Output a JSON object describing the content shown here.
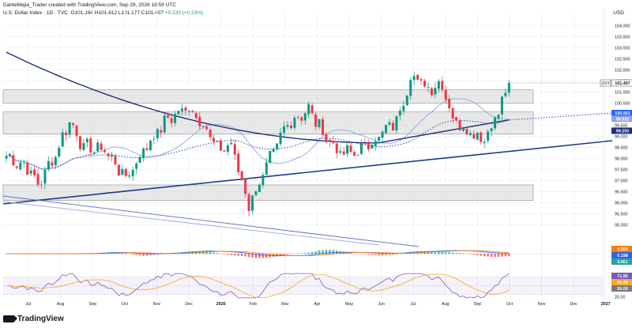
{
  "header": {
    "credit": "DanteMejia_Trader created with TradingView.com, Sep 29, 2026 19:59 UTC",
    "symbol": "U.S. Dollar Index · 1D · TVC",
    "ohlc": "O101.194 H101.612 L101.177 C101.407",
    "change": "+0.233 (+0.23%)",
    "currency": "USD"
  },
  "brand": {
    "name": "TradingView"
  },
  "colors": {
    "up": "#089981",
    "down": "#f23645",
    "ma_fast": "#8aa6e6",
    "ma_dot": "#2a41b8",
    "ma_slow": "#1f2f7a",
    "trendline": "#1f3a8a",
    "zone": "#d6d6d6",
    "rsi": "#7e57c2"
  },
  "chart_data": [
    {
      "type": "candlestick",
      "title": "U.S. Dollar Index · 1D · TVC",
      "x_axis_labels": [
        "Jul",
        "Aug",
        "Sep",
        "Oct",
        "Nov",
        "Dec",
        "2026",
        "Feb",
        "Mar",
        "Apr",
        "May",
        "Jun",
        "Jul",
        "Aug",
        "Sep",
        "Oct",
        "Nov",
        "Dec",
        "2027"
      ],
      "y_ticks": [
        "104.000",
        "103.500",
        "103.000",
        "102.500",
        "102.000",
        "101.500",
        "101.000",
        "100.500",
        "100.000",
        "99.500",
        "99.000",
        "98.500",
        "98.000",
        "97.500",
        "97.000",
        "96.500",
        "96.000",
        "95.500",
        "95.000"
      ],
      "ylim": [
        94.8,
        104.3
      ],
      "price_waypoints": [
        {
          "x": 0,
          "y": 98.1
        },
        {
          "x": 6,
          "y": 97.6
        },
        {
          "x": 9,
          "y": 96.8
        },
        {
          "x": 14,
          "y": 98.2
        },
        {
          "x": 18,
          "y": 99.7
        },
        {
          "x": 22,
          "y": 98.5
        },
        {
          "x": 28,
          "y": 98.4
        },
        {
          "x": 34,
          "y": 97.1
        },
        {
          "x": 40,
          "y": 98.6
        },
        {
          "x": 46,
          "y": 99.8
        },
        {
          "x": 52,
          "y": 100.3
        },
        {
          "x": 56,
          "y": 99.6
        },
        {
          "x": 60,
          "y": 98.4
        },
        {
          "x": 64,
          "y": 98.6
        },
        {
          "x": 69,
          "y": 95.9
        },
        {
          "x": 74,
          "y": 97.6
        },
        {
          "x": 80,
          "y": 99.6
        },
        {
          "x": 86,
          "y": 100.2
        },
        {
          "x": 90,
          "y": 99.2
        },
        {
          "x": 95,
          "y": 98.2
        },
        {
          "x": 100,
          "y": 98.3
        },
        {
          "x": 106,
          "y": 99.0
        },
        {
          "x": 111,
          "y": 99.7
        },
        {
          "x": 115,
          "y": 101.7
        },
        {
          "x": 120,
          "y": 101.2
        },
        {
          "x": 124,
          "y": 101.4
        },
        {
          "x": 127,
          "y": 99.8
        },
        {
          "x": 131,
          "y": 99.3
        },
        {
          "x": 136,
          "y": 98.9
        },
        {
          "x": 140,
          "y": 100.1
        },
        {
          "x": 143,
          "y": 101.41
        }
      ],
      "price_range": [
        95.7,
        101.9
      ],
      "zones": [
        [
          100.5,
          101.1
        ],
        [
          99.1,
          100.1
        ],
        [
          96.1,
          96.8
        ]
      ],
      "last_price": {
        "label": "DXY",
        "value": "101.407"
      },
      "level_labels": [
        {
          "value": "100.051",
          "color": "#2962ff"
        },
        {
          "value": "99.932",
          "color": "#90a4e0"
        },
        {
          "value": "99.250",
          "color": "#1f2f7a"
        }
      ]
    },
    {
      "type": "histogram",
      "title": "MACD",
      "value_labels": [
        {
          "value": "0.259",
          "color": "#f57c00"
        },
        {
          "value": "0.198",
          "color": "#2962ff"
        },
        {
          "value": "0.061",
          "color": "#26a69a"
        }
      ]
    },
    {
      "type": "line",
      "title": "RSI",
      "y_ticks": [
        "25.00"
      ],
      "ylim": [
        20,
        80
      ],
      "value_labels": [
        {
          "value": "71.95",
          "color": "#7e57c2"
        },
        {
          "value": "61.49",
          "color": "#f9a825"
        },
        {
          "value": "50.00",
          "color": "#787b86"
        }
      ]
    }
  ]
}
